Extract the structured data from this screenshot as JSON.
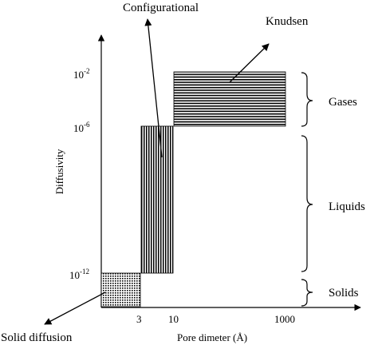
{
  "chart_data": {
    "type": "diagram",
    "xlabel": "Pore dimeter (Å)",
    "ylabel": "Diffusivity",
    "x_ticks": [
      "3",
      "10",
      "1000"
    ],
    "y_ticks": [
      {
        "base": "10",
        "exp": "-2"
      },
      {
        "base": "10",
        "exp": "-6"
      },
      {
        "base": "10",
        "exp": "-12"
      }
    ],
    "regions": [
      {
        "name": "Solid diffusion",
        "pattern": "dots"
      },
      {
        "name": "Configurational",
        "pattern": "vertical-lines"
      },
      {
        "name": "Knudsen",
        "pattern": "horizontal-lines"
      }
    ],
    "phases": [
      "Gases",
      "Liquids",
      "Solids"
    ]
  }
}
